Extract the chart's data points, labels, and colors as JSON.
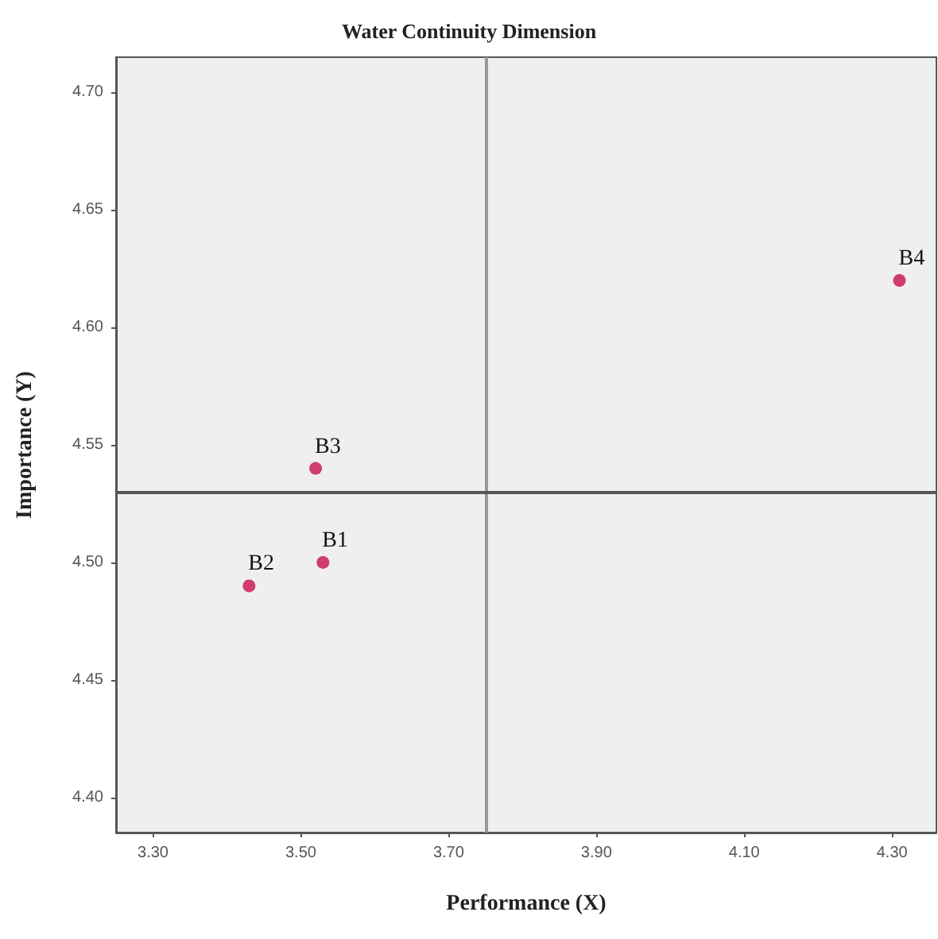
{
  "chart_data": {
    "type": "scatter",
    "title": "Water Continuity Dimension",
    "xlabel": "Performance (X)",
    "ylabel": "Importance (Y)",
    "x": [
      3.53,
      3.43,
      3.52,
      4.31
    ],
    "values": [
      4.5,
      4.49,
      4.54,
      4.62
    ],
    "color": "#c8104a",
    "marker": "circle",
    "grid": false,
    "xlim": [
      3.25,
      4.36
    ],
    "xticks": [
      {
        "value": 3.3,
        "label": "3.30"
      },
      {
        "value": 3.5,
        "label": "3.50"
      },
      {
        "value": 3.7,
        "label": "3.70"
      },
      {
        "value": 3.9,
        "label": "3.90"
      },
      {
        "value": 4.1,
        "label": "4.10"
      },
      {
        "value": 4.3,
        "label": "4.30"
      }
    ],
    "ylim": [
      4.385,
      4.715
    ],
    "yticks": [
      {
        "value": 4.4,
        "label": "4.40"
      },
      {
        "value": 4.45,
        "label": "4.45"
      },
      {
        "value": 4.5,
        "label": "4.50"
      },
      {
        "value": 4.55,
        "label": "4.55"
      },
      {
        "value": 4.6,
        "label": "4.60"
      },
      {
        "value": 4.65,
        "label": "4.65"
      },
      {
        "value": 4.7,
        "label": "4.70"
      }
    ],
    "ref_lines": [
      {
        "axis": "x",
        "value": 3.75,
        "color": "#999999"
      },
      {
        "axis": "y",
        "value": 4.53,
        "color": "#555555"
      }
    ],
    "annotations": [
      {
        "text": "B1",
        "x": 3.53,
        "y": 4.5
      },
      {
        "text": "B2",
        "x": 3.43,
        "y": 4.49
      },
      {
        "text": "B3",
        "x": 3.52,
        "y": 4.54
      },
      {
        "text": "B4",
        "x": 4.31,
        "y": 4.62
      }
    ]
  }
}
